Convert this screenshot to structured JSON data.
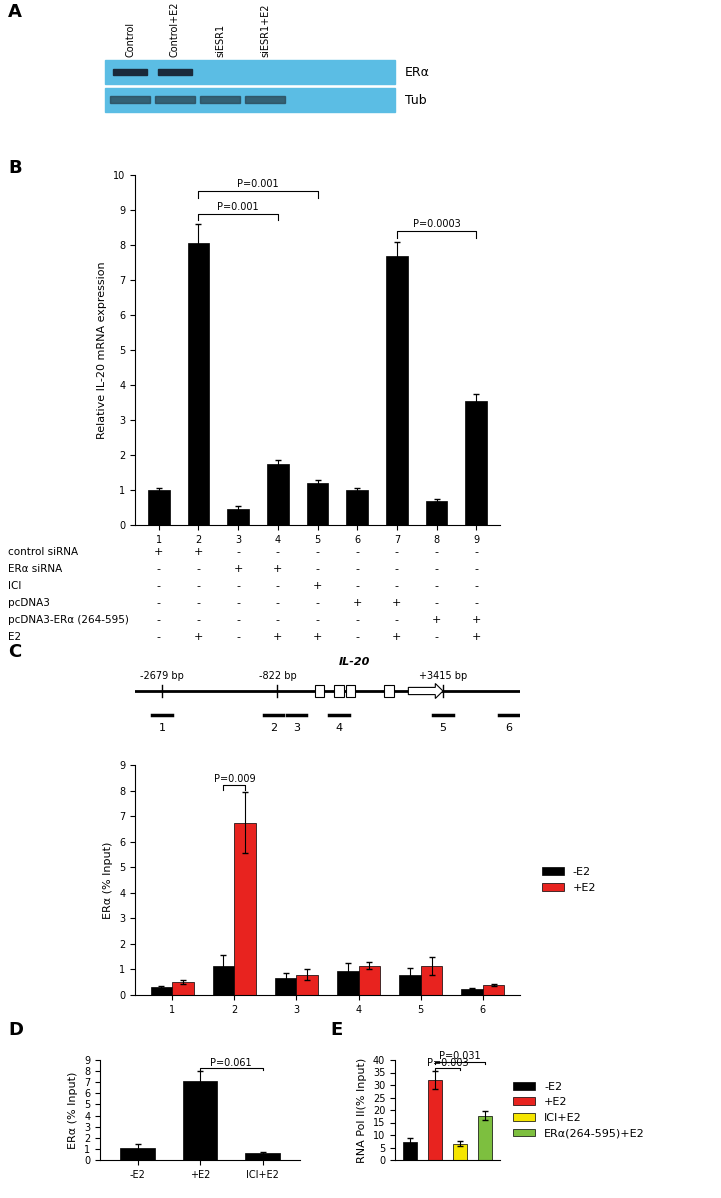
{
  "blot": {
    "panel_label": "A",
    "lanes": [
      "Control",
      "Control+E2",
      "siESR1",
      "siESR1+E2"
    ],
    "rows": [
      "ERα",
      "Tub"
    ]
  },
  "chart_data": [
    {
      "panel_label": "B",
      "type": "bar",
      "y_label": "Relative IL-20 mRNA expression",
      "categories": [
        "1",
        "2",
        "3",
        "4",
        "5",
        "6",
        "7",
        "8",
        "9"
      ],
      "values": [
        1.0,
        8.05,
        0.45,
        1.75,
        1.2,
        1.0,
        7.7,
        0.7,
        3.55
      ],
      "errors": [
        0.05,
        0.55,
        0.1,
        0.1,
        0.1,
        0.05,
        0.4,
        0.05,
        0.2
      ],
      "color": "#000000",
      "ylim": [
        0,
        10
      ],
      "yticks": [
        0,
        1,
        2,
        3,
        4,
        5,
        6,
        7,
        8,
        9,
        10
      ],
      "annotations": [
        {
          "text": "P=0.001",
          "between": [
            "2",
            "4"
          ]
        },
        {
          "text": "P=0.001",
          "between": [
            "2",
            "5"
          ]
        },
        {
          "text": "P=0.0003",
          "between": [
            "7",
            "9"
          ]
        }
      ],
      "conditions": [
        {
          "label": "control siRNA",
          "marks": [
            "+",
            "+",
            "-",
            "-",
            "-",
            "-",
            "-",
            "-",
            "-"
          ]
        },
        {
          "label": "ERα siRNA",
          "marks": [
            "-",
            "-",
            "+",
            "+",
            "-",
            "-",
            "-",
            "-",
            "-"
          ]
        },
        {
          "label": "ICI",
          "marks": [
            "-",
            "-",
            "-",
            "-",
            "+",
            "-",
            "-",
            "-",
            "-"
          ]
        },
        {
          "label": "pcDNA3",
          "marks": [
            "-",
            "-",
            "-",
            "-",
            "-",
            "+",
            "+",
            "-",
            "-"
          ]
        },
        {
          "label": "pcDNA3-ERα (264-595)",
          "marks": [
            "-",
            "-",
            "-",
            "-",
            "-",
            "-",
            "-",
            "+",
            "+"
          ]
        },
        {
          "label": "E2",
          "marks": [
            "-",
            "+",
            "-",
            "+",
            "+",
            "-",
            "+",
            "-",
            "+"
          ]
        }
      ]
    },
    {
      "panel_label": "C",
      "type": "bar",
      "y_label": "ERα (% Input)",
      "categories": [
        "1",
        "2",
        "3",
        "4",
        "5",
        "6"
      ],
      "series": [
        {
          "name": "-E2",
          "color": "#000000",
          "values": [
            0.3,
            1.15,
            0.65,
            0.95,
            0.8,
            0.25
          ],
          "errors": [
            0.05,
            0.4,
            0.2,
            0.3,
            0.25,
            0.03
          ]
        },
        {
          "name": "+E2",
          "color": "#e8231f",
          "values": [
            0.5,
            6.75,
            0.8,
            1.15,
            1.15,
            0.4
          ],
          "errors": [
            0.08,
            1.2,
            0.2,
            0.15,
            0.35,
            0.03
          ]
        }
      ],
      "ylim": [
        0,
        9
      ],
      "yticks": [
        0,
        1,
        2,
        3,
        4,
        5,
        6,
        7,
        8,
        9
      ],
      "legend": "right",
      "annotations": [
        {
          "text": "P=0.009",
          "category": "2",
          "between": [
            "-E2",
            "+E2"
          ]
        }
      ],
      "gene_map": {
        "gene": "IL-20",
        "coordinates": [
          "-2679 bp",
          "-822 bp",
          "+3415 bp"
        ],
        "regions": [
          "1",
          "2",
          "3",
          "4",
          "5",
          "6"
        ]
      }
    },
    {
      "panel_label": "D",
      "type": "bar",
      "y_label": "ERα (% Input)",
      "categories": [
        "-E2",
        "+E2",
        "ICI+E2"
      ],
      "values": [
        1.05,
        7.1,
        0.65
      ],
      "errors": [
        0.35,
        0.9,
        0.1
      ],
      "color": "#000000",
      "ylim": [
        0,
        9
      ],
      "yticks": [
        0,
        1,
        2,
        3,
        4,
        5,
        6,
        7,
        8,
        9
      ],
      "annotations": [
        {
          "text": "P=0.061",
          "between": [
            "+E2",
            "ICI+E2"
          ]
        }
      ]
    },
    {
      "panel_label": "E",
      "type": "bar",
      "y_label": "RNA Pol II(% Input)",
      "categories": [
        "-E2",
        "+E2",
        "ICI+E2",
        "ERα(264-595)+E2"
      ],
      "values": [
        7.3,
        32,
        6.5,
        17.8
      ],
      "errors": [
        1.5,
        3.5,
        1.0,
        1.8
      ],
      "colors": [
        "#000000",
        "#e8231f",
        "#f5e500",
        "#7dbf3f"
      ],
      "ylim": [
        0,
        40
      ],
      "yticks": [
        0,
        5,
        10,
        15,
        20,
        25,
        30,
        35,
        40
      ],
      "tick_labels": "y",
      "legend": "right",
      "annotations": [
        {
          "text": "P=0.003",
          "between": [
            "+E2",
            "ICI+E2"
          ]
        },
        {
          "text": "P=0.031",
          "between": [
            "+E2",
            "ERα(264-595)+E2"
          ]
        }
      ]
    }
  ]
}
